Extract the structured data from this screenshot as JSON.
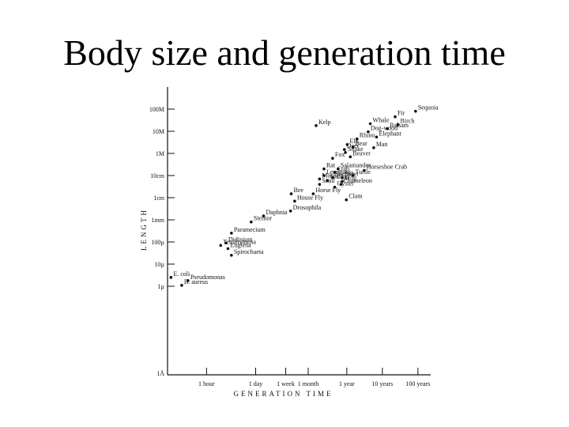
{
  "slide": {
    "title": "Body size and generation time"
  },
  "chart_data": {
    "type": "scatter",
    "title": "Body size and generation time",
    "xlabel": "GENERATION TIME",
    "ylabel": "LENGTH",
    "x_scale": "log",
    "y_scale": "log",
    "x_unit": "hours",
    "y_unit": "meters",
    "xlim": [
      0.08,
      2000000
    ],
    "ylim": [
      1e-10,
      1000
    ],
    "x_ticks": [
      {
        "label": "1 hour",
        "value": 1
      },
      {
        "label": "1 day",
        "value": 24
      },
      {
        "label": "1 week",
        "value": 168
      },
      {
        "label": "1 month",
        "value": 720
      },
      {
        "label": "1 year",
        "value": 8760
      },
      {
        "label": "10 years",
        "value": 87600
      },
      {
        "label": "100 years",
        "value": 876000
      }
    ],
    "y_ticks": [
      {
        "label": "100M",
        "value": 100
      },
      {
        "label": "10M",
        "value": 10
      },
      {
        "label": "1M",
        "value": 1
      },
      {
        "label": "10cm",
        "value": 0.1
      },
      {
        "label": "1cm",
        "value": 0.01
      },
      {
        "label": "1mm",
        "value": 0.001
      },
      {
        "label": "100µ",
        "value": 0.0001
      },
      {
        "label": "10µ",
        "value": 1e-05
      },
      {
        "label": "1µ",
        "value": 1e-06
      }
    ],
    "points": [
      {
        "name": "E. coli",
        "x": 0.1,
        "y": 2.5e-06
      },
      {
        "name": "Pseudomonas",
        "x": 0.3,
        "y": 1.8e-06
      },
      {
        "name": "B. aureus",
        "x": 0.2,
        "y": 1.1e-06
      },
      {
        "name": "Spirochaeta",
        "x": 5,
        "y": 2.5e-05
      },
      {
        "name": "Euglena",
        "x": 4,
        "y": 5e-05
      },
      {
        "name": "Didinium",
        "x": 3.5,
        "y": 9e-05
      },
      {
        "name": "Tetrahymena",
        "x": 2.5,
        "y": 7e-05
      },
      {
        "name": "Paramecium",
        "x": 5,
        "y": 0.00025
      },
      {
        "name": "Stentor",
        "x": 18,
        "y": 0.0008
      },
      {
        "name": "Daphnia",
        "x": 40,
        "y": 0.0015
      },
      {
        "name": "Drosophila",
        "x": 230,
        "y": 0.0025
      },
      {
        "name": "House Fly",
        "x": 300,
        "y": 0.007
      },
      {
        "name": "Bee",
        "x": 240,
        "y": 0.015
      },
      {
        "name": "Horse Fly",
        "x": 1000,
        "y": 0.015
      },
      {
        "name": "Clam",
        "x": 8500,
        "y": 0.008
      },
      {
        "name": "Oyster",
        "x": 4000,
        "y": 0.03
      },
      {
        "name": "Snail",
        "x": 1500,
        "y": 0.04
      },
      {
        "name": "Scallop",
        "x": 2500,
        "y": 0.06
      },
      {
        "name": "Mouse",
        "x": 1500,
        "y": 0.07
      },
      {
        "name": "Starfish",
        "x": 3500,
        "y": 0.08
      },
      {
        "name": "Chameleon",
        "x": 6000,
        "y": 0.04
      },
      {
        "name": "Frog",
        "x": 6500,
        "y": 0.055
      },
      {
        "name": "Newt",
        "x": 6500,
        "y": 0.08
      },
      {
        "name": "Turtle",
        "x": 13000,
        "y": 0.1
      },
      {
        "name": "Lemming",
        "x": 2000,
        "y": 0.1
      },
      {
        "name": "Crab",
        "x": 4000,
        "y": 0.14
      },
      {
        "name": "Rat",
        "x": 2000,
        "y": 0.2
      },
      {
        "name": "Salamander",
        "x": 5000,
        "y": 0.2
      },
      {
        "name": "Horseshoe Crab",
        "x": 27000,
        "y": 0.17
      },
      {
        "name": "Fox",
        "x": 3500,
        "y": 0.6
      },
      {
        "name": "Beaver",
        "x": 11000,
        "y": 0.7
      },
      {
        "name": "Snake",
        "x": 8000,
        "y": 1.1
      },
      {
        "name": "Deer",
        "x": 7500,
        "y": 1.5
      },
      {
        "name": "Bear",
        "x": 13000,
        "y": 1.9
      },
      {
        "name": "Man",
        "x": 50000,
        "y": 1.8
      },
      {
        "name": "Elk",
        "x": 9000,
        "y": 2.5
      },
      {
        "name": "Rhino",
        "x": 17000,
        "y": 4.5
      },
      {
        "name": "Elephant",
        "x": 60000,
        "y": 5.5
      },
      {
        "name": "Dog-wood",
        "x": 35000,
        "y": 9.5
      },
      {
        "name": "Kelp",
        "x": 1200,
        "y": 18
      },
      {
        "name": "Balsam",
        "x": 120000,
        "y": 13
      },
      {
        "name": "Whale",
        "x": 40000,
        "y": 22
      },
      {
        "name": "Birch",
        "x": 240000,
        "y": 20
      },
      {
        "name": "Fir",
        "x": 200000,
        "y": 45
      },
      {
        "name": "Sequoia",
        "x": 750000,
        "y": 80
      }
    ],
    "grid": false,
    "legend": "none"
  }
}
